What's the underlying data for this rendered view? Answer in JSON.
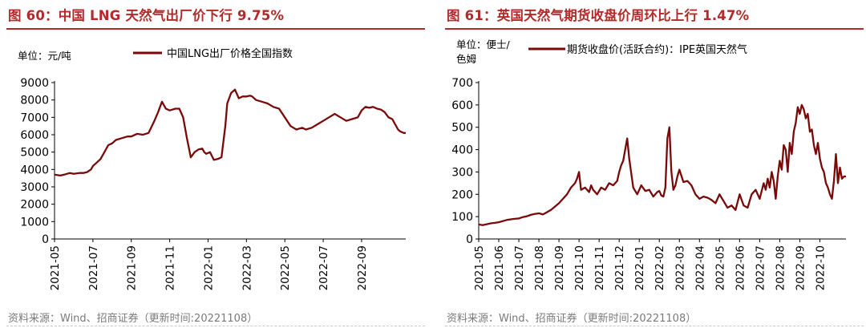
{
  "colors": {
    "title": "#b22a2a",
    "series": "#7a0a0a",
    "axis": "#000000",
    "source": "#7a7a7a"
  },
  "chart_data": [
    {
      "type": "line",
      "title": "图 60：中国 LNG 天然气出厂价下行 9.75%",
      "unit_label": "单位：元/吨",
      "legend": "中国LNG出厂价格全国指数",
      "legend_position": "top-right",
      "source": "资料来源：Wind、招商证券（更新时间:20221108）",
      "ylim": [
        0,
        9000
      ],
      "yticks": [
        0,
        1000,
        2000,
        3000,
        4000,
        5000,
        6000,
        7000,
        8000,
        9000
      ],
      "xtick_labels": [
        "2021-05",
        "2021-07",
        "2021-09",
        "2021-11",
        "2022-01",
        "2022-03",
        "2022-05",
        "2022-07",
        "2022-09"
      ],
      "x_range_months": [
        0,
        18.3
      ],
      "series": [
        {
          "name": "中国LNG出厂价格全国指数",
          "x": [
            0,
            0.3,
            0.5,
            0.8,
            1.0,
            1.3,
            1.5,
            1.7,
            1.9,
            2.0,
            2.2,
            2.4,
            2.6,
            2.8,
            3.0,
            3.2,
            3.5,
            3.8,
            4.0,
            4.3,
            4.6,
            4.9,
            5.2,
            5.4,
            5.6,
            5.8,
            6.0,
            6.3,
            6.5,
            6.7,
            6.9,
            7.1,
            7.3,
            7.5,
            7.7,
            7.8,
            7.9,
            8.1,
            8.3,
            8.5,
            8.7,
            8.9,
            9.0,
            9.2,
            9.4,
            9.6,
            9.8,
            10.0,
            10.2,
            10.3,
            10.5,
            10.8,
            11.1,
            11.4,
            11.7,
            12.0,
            12.3,
            12.6,
            12.9,
            13.1,
            13.4,
            13.7,
            14.0,
            14.3,
            14.6,
            14.9,
            15.2,
            15.5,
            15.8,
            16.0,
            16.2,
            16.4,
            16.6,
            16.8,
            17.0,
            17.2,
            17.4,
            17.6,
            17.8,
            17.9,
            18.0,
            18.1,
            18.2,
            18.3
          ],
          "values": [
            3700,
            3650,
            3700,
            3800,
            3750,
            3800,
            3800,
            3850,
            4000,
            4200,
            4400,
            4600,
            5000,
            5400,
            5500,
            5700,
            5800,
            5900,
            5900,
            6050,
            6000,
            6100,
            6800,
            7300,
            7900,
            7500,
            7400,
            7500,
            7500,
            7000,
            5800,
            4700,
            5000,
            5150,
            5200,
            5000,
            4900,
            5000,
            4550,
            4600,
            4700,
            6500,
            7800,
            8400,
            8600,
            8100,
            8200,
            8200,
            8250,
            8200,
            8000,
            7900,
            7800,
            7600,
            7500,
            7000,
            6500,
            6300,
            6400,
            6300,
            6400,
            6600,
            6800,
            7000,
            7200,
            7000,
            6800,
            6900,
            7000,
            7400,
            7600,
            7550,
            7600,
            7500,
            7450,
            7300,
            7000,
            6900,
            6500,
            6300,
            6200,
            6150,
            6100,
            6100
          ]
        }
      ]
    },
    {
      "type": "line",
      "title": "图 61：英国天然气期货收盘价周环比上行 1.47%",
      "unit_label": "单位：便士/色姆",
      "legend": "期货收盘价(活跃合约)：IPE英国天然气",
      "legend_position": "top-right",
      "source": "资料来源：Wind、招商证券（更新时间:20221108）",
      "ylim": [
        0,
        700
      ],
      "yticks": [
        0,
        100,
        200,
        300,
        400,
        500,
        600,
        700
      ],
      "xtick_labels": [
        "2021-05",
        "2021-06",
        "2021-07",
        "2021-08",
        "2021-09",
        "2021-10",
        "2021-11",
        "2021-12",
        "2022-01",
        "2022-02",
        "2022-03",
        "2022-04",
        "2022-05",
        "2022-06",
        "2022-07",
        "2022-08",
        "2022-09",
        "2022-10"
      ],
      "x_range_months": [
        0,
        18.3
      ],
      "series": [
        {
          "name": "期货收盘价(活跃合约)：IPE英国天然气",
          "x": [
            0,
            0.2,
            0.4,
            0.6,
            0.8,
            1.0,
            1.2,
            1.4,
            1.6,
            1.8,
            2.0,
            2.2,
            2.4,
            2.6,
            2.8,
            3.0,
            3.2,
            3.4,
            3.6,
            3.8,
            4.0,
            4.2,
            4.4,
            4.6,
            4.8,
            4.9,
            5.0,
            5.1,
            5.3,
            5.5,
            5.6,
            5.7,
            5.9,
            6.1,
            6.3,
            6.5,
            6.7,
            6.9,
            7.0,
            7.1,
            7.2,
            7.3,
            7.4,
            7.5,
            7.7,
            7.9,
            8.1,
            8.3,
            8.5,
            8.7,
            8.9,
            9.0,
            9.1,
            9.2,
            9.3,
            9.4,
            9.5,
            9.6,
            9.7,
            9.8,
            9.9,
            10.0,
            10.2,
            10.4,
            10.6,
            10.8,
            11.0,
            11.2,
            11.4,
            11.6,
            11.8,
            12.0,
            12.2,
            12.4,
            12.6,
            12.8,
            13.0,
            13.2,
            13.4,
            13.5,
            13.6,
            13.8,
            14.0,
            14.2,
            14.3,
            14.4,
            14.5,
            14.6,
            14.7,
            14.8,
            14.9,
            15.0,
            15.1,
            15.2,
            15.3,
            15.4,
            15.5,
            15.6,
            15.7,
            15.8,
            15.9,
            16.0,
            16.1,
            16.2,
            16.3,
            16.4,
            16.5,
            16.6,
            16.7,
            16.8,
            16.9,
            17.0,
            17.1,
            17.2,
            17.3,
            17.4,
            17.5,
            17.6,
            17.7,
            17.8,
            17.9,
            18.0,
            18.1,
            18.2,
            18.3
          ],
          "values": [
            65,
            62,
            66,
            70,
            72,
            75,
            80,
            85,
            88,
            90,
            92,
            98,
            102,
            108,
            112,
            115,
            110,
            120,
            130,
            145,
            160,
            180,
            200,
            230,
            250,
            270,
            300,
            220,
            230,
            210,
            240,
            220,
            200,
            230,
            220,
            250,
            240,
            260,
            300,
            330,
            350,
            400,
            450,
            360,
            230,
            200,
            240,
            215,
            220,
            190,
            210,
            215,
            195,
            190,
            230,
            450,
            500,
            300,
            220,
            240,
            280,
            310,
            255,
            260,
            240,
            200,
            180,
            190,
            185,
            175,
            160,
            200,
            170,
            140,
            150,
            130,
            200,
            150,
            140,
            170,
            200,
            220,
            180,
            250,
            220,
            270,
            230,
            300,
            260,
            180,
            280,
            350,
            310,
            420,
            400,
            300,
            430,
            380,
            480,
            520,
            590,
            560,
            600,
            580,
            540,
            560,
            480,
            490,
            420,
            380,
            430,
            360,
            320,
            300,
            250,
            230,
            200,
            180,
            260,
            380,
            250,
            320,
            270,
            280,
            280
          ]
        }
      ]
    }
  ]
}
